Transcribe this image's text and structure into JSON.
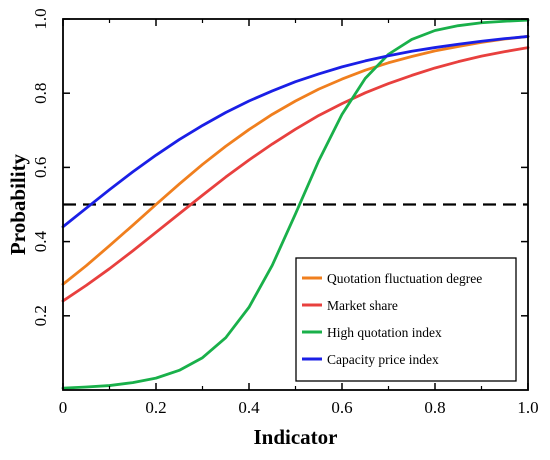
{
  "chart_data": {
    "type": "line",
    "title": "",
    "xlabel": "Indicator",
    "ylabel": "Probability",
    "xlim": [
      0,
      1.0
    ],
    "ylim": [
      0,
      1.0
    ],
    "x_ticks": [
      {
        "value": 0,
        "label": "0"
      },
      {
        "value": 0.2,
        "label": "0.2"
      },
      {
        "value": 0.4,
        "label": "0.4"
      },
      {
        "value": 0.6,
        "label": "0.6"
      },
      {
        "value": 0.8,
        "label": "0.8"
      },
      {
        "value": 1.0,
        "label": "1.0"
      }
    ],
    "y_ticks": [
      {
        "value": 0.2,
        "label": "0.2"
      },
      {
        "value": 0.4,
        "label": "0.4"
      },
      {
        "value": 0.6,
        "label": "0.6"
      },
      {
        "value": 0.8,
        "label": "0.8"
      },
      {
        "value": 1.0,
        "label": "1.0"
      }
    ],
    "minor_ticks_x": [
      0.1,
      0.3,
      0.5,
      0.7,
      0.9
    ],
    "reference_line": {
      "y": 0.5,
      "style": "dashed",
      "color": "#000000"
    },
    "grid": false,
    "legend_position": "bottom-right",
    "series": [
      {
        "name": "Quotation fluctuation degree",
        "color": "#f07f1e",
        "x": [
          0,
          0.05,
          0.1,
          0.15,
          0.2,
          0.25,
          0.3,
          0.35,
          0.4,
          0.45,
          0.5,
          0.55,
          0.6,
          0.65,
          0.7,
          0.75,
          0.8,
          0.85,
          0.9,
          0.95,
          1.0
        ],
        "y": [
          0.285,
          0.335,
          0.389,
          0.444,
          0.5,
          0.555,
          0.608,
          0.657,
          0.702,
          0.743,
          0.779,
          0.811,
          0.838,
          0.862,
          0.882,
          0.899,
          0.914,
          0.926,
          0.937,
          0.946,
          0.953
        ]
      },
      {
        "name": "Market share",
        "color": "#e8403e",
        "x": [
          0,
          0.05,
          0.1,
          0.15,
          0.2,
          0.25,
          0.3,
          0.35,
          0.4,
          0.45,
          0.5,
          0.55,
          0.6,
          0.65,
          0.7,
          0.75,
          0.8,
          0.85,
          0.9,
          0.95,
          1.0
        ],
        "y": [
          0.24,
          0.282,
          0.327,
          0.375,
          0.425,
          0.475,
          0.525,
          0.574,
          0.62,
          0.663,
          0.703,
          0.74,
          0.772,
          0.801,
          0.826,
          0.848,
          0.868,
          0.885,
          0.9,
          0.912,
          0.923
        ]
      },
      {
        "name": "High quotation index",
        "color": "#19b04a",
        "x": [
          0,
          0.05,
          0.1,
          0.15,
          0.2,
          0.25,
          0.3,
          0.35,
          0.4,
          0.45,
          0.5,
          0.55,
          0.6,
          0.65,
          0.7,
          0.75,
          0.8,
          0.85,
          0.9,
          0.95,
          1.0
        ],
        "y": [
          0.005,
          0.008,
          0.012,
          0.02,
          0.032,
          0.053,
          0.087,
          0.141,
          0.223,
          0.336,
          0.475,
          0.618,
          0.743,
          0.84,
          0.905,
          0.945,
          0.969,
          0.982,
          0.99,
          0.994,
          0.997
        ]
      },
      {
        "name": "Capacity price index",
        "color": "#1a1fe6",
        "x": [
          0,
          0.05,
          0.1,
          0.15,
          0.2,
          0.25,
          0.3,
          0.35,
          0.4,
          0.45,
          0.5,
          0.55,
          0.6,
          0.65,
          0.7,
          0.75,
          0.8,
          0.85,
          0.9,
          0.95,
          1.0
        ],
        "y": [
          0.44,
          0.49,
          0.54,
          0.588,
          0.633,
          0.675,
          0.713,
          0.748,
          0.779,
          0.806,
          0.831,
          0.852,
          0.871,
          0.887,
          0.901,
          0.913,
          0.923,
          0.932,
          0.94,
          0.947,
          0.953
        ]
      }
    ]
  }
}
